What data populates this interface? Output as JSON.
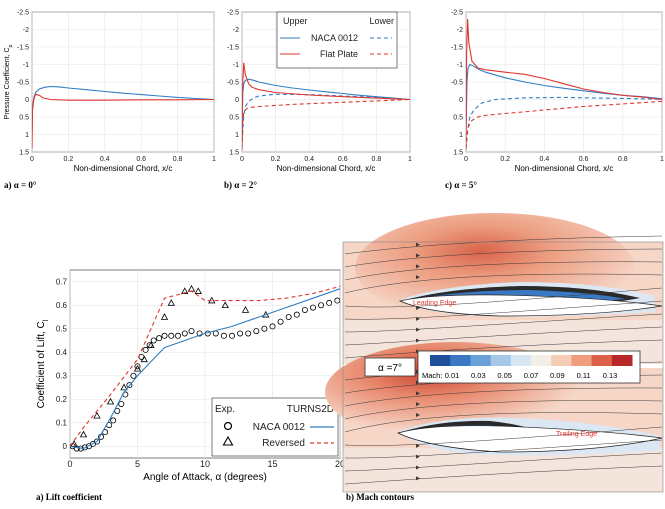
{
  "chart_data": [
    {
      "id": "cp-a0",
      "type": "line",
      "panel_caption": "a) α = 0°",
      "xlabel": "Non-dimensional Chord, x/c",
      "ylabel": "Pressure Coefficient, Cp",
      "xlim": [
        0,
        1
      ],
      "ylim": [
        1.5,
        -2.5
      ],
      "y_inverted": true,
      "xticks": [
        "0",
        "0.2",
        "0.4",
        "0.6",
        "0.8",
        "1"
      ],
      "yticks": [
        "-2.5",
        "-2",
        "-1.5",
        "-1",
        "-0.5",
        "0",
        "0.5",
        "1",
        "1.5"
      ],
      "series": [
        {
          "name": "NACA 0012 Upper",
          "color": "#2f7ec6",
          "dash": false,
          "x": [
            0,
            0.003,
            0.01,
            0.02,
            0.04,
            0.07,
            0.1,
            0.15,
            0.2,
            0.3,
            0.4,
            0.5,
            0.6,
            0.7,
            0.8,
            0.9,
            1.0
          ],
          "y": [
            1.0,
            0.2,
            -0.05,
            -0.2,
            -0.3,
            -0.35,
            -0.37,
            -0.36,
            -0.33,
            -0.28,
            -0.23,
            -0.18,
            -0.14,
            -0.1,
            -0.06,
            -0.03,
            0.0
          ]
        },
        {
          "name": "Flat Plate Upper",
          "color": "#e0362c",
          "dash": false,
          "x": [
            0,
            0.003,
            0.01,
            0.02,
            0.04,
            0.06,
            0.1,
            0.2,
            0.4,
            0.6,
            0.8,
            1.0
          ],
          "y": [
            1.4,
            0.3,
            0.0,
            -0.15,
            -0.12,
            -0.05,
            0.0,
            0.02,
            0.02,
            0.01,
            0.01,
            0.0
          ]
        }
      ]
    },
    {
      "id": "cp-a2",
      "type": "line",
      "panel_caption": "b) α = 2°",
      "xlabel": "Non-dimensional Chord, x/c",
      "xlim": [
        0,
        1
      ],
      "ylim": [
        1.5,
        -2.5
      ],
      "y_inverted": true,
      "xticks": [
        "0",
        "0.2",
        "0.4",
        "0.6",
        "0.8",
        "1"
      ],
      "yticks": [
        "-2.5",
        "-2",
        "-1.5",
        "-1",
        "-0.5",
        "0",
        "0.5",
        "1",
        "1.5"
      ],
      "legend": {
        "header_left": "Upper",
        "header_right": "Lower",
        "entries": [
          "NACA 0012",
          "Flat Plate"
        ]
      },
      "series": [
        {
          "name": "NACA 0012 Upper",
          "color": "#2f7ec6",
          "dash": false,
          "x": [
            0,
            0.005,
            0.01,
            0.02,
            0.04,
            0.07,
            0.1,
            0.2,
            0.3,
            0.4,
            0.5,
            0.6,
            0.7,
            0.8,
            0.9,
            1.0
          ],
          "y": [
            1.0,
            -0.2,
            -0.45,
            -0.55,
            -0.58,
            -0.55,
            -0.5,
            -0.4,
            -0.33,
            -0.27,
            -0.22,
            -0.17,
            -0.12,
            -0.08,
            -0.04,
            0.0
          ]
        },
        {
          "name": "NACA 0012 Lower",
          "color": "#2f7ec6",
          "dash": true,
          "x": [
            0,
            0.005,
            0.01,
            0.02,
            0.04,
            0.07,
            0.1,
            0.2,
            0.4,
            0.6,
            0.8,
            1.0
          ],
          "y": [
            1.4,
            0.9,
            0.5,
            0.2,
            0.05,
            -0.05,
            -0.1,
            -0.15,
            -0.14,
            -0.1,
            -0.06,
            0.0
          ]
        },
        {
          "name": "Flat Plate Upper",
          "color": "#e0362c",
          "dash": false,
          "x": [
            0,
            0.003,
            0.01,
            0.02,
            0.04,
            0.06,
            0.1,
            0.2,
            0.4,
            0.6,
            0.8,
            1.0
          ],
          "y": [
            1.45,
            -0.3,
            -1.05,
            -0.7,
            -0.45,
            -0.35,
            -0.28,
            -0.2,
            -0.13,
            -0.08,
            -0.04,
            0.0
          ]
        },
        {
          "name": "Flat Plate Lower",
          "color": "#e0362c",
          "dash": true,
          "x": [
            0,
            0.005,
            0.01,
            0.03,
            0.06,
            0.1,
            0.3,
            0.6,
            1.0
          ],
          "y": [
            1.3,
            0.6,
            0.35,
            0.25,
            0.22,
            0.2,
            0.14,
            0.08,
            0.0
          ]
        }
      ]
    },
    {
      "id": "cp-a5",
      "type": "line",
      "panel_caption": "c) α = 5°",
      "xlabel": "Non-dimensional Chord, x/c",
      "xlim": [
        0,
        1
      ],
      "ylim": [
        1.5,
        -2.5
      ],
      "y_inverted": true,
      "xticks": [
        "0",
        "0.2",
        "0.4",
        "0.6",
        "0.8",
        "1"
      ],
      "yticks": [
        "-2.5",
        "-2",
        "-1.5",
        "-1",
        "-0.5",
        "0",
        "0.5",
        "1",
        "1.5"
      ],
      "series": [
        {
          "name": "NACA 0012 Upper",
          "color": "#2f7ec6",
          "dash": false,
          "x": [
            0,
            0.005,
            0.01,
            0.02,
            0.04,
            0.07,
            0.1,
            0.2,
            0.3,
            0.4,
            0.5,
            0.6,
            0.7,
            0.8,
            0.9,
            1.0
          ],
          "y": [
            1.0,
            -0.5,
            -0.9,
            -1.0,
            -0.95,
            -0.85,
            -0.78,
            -0.62,
            -0.5,
            -0.4,
            -0.32,
            -0.25,
            -0.18,
            -0.12,
            -0.08,
            -0.02
          ]
        },
        {
          "name": "NACA 0012 Lower",
          "color": "#2f7ec6",
          "dash": true,
          "x": [
            0,
            0.005,
            0.01,
            0.02,
            0.04,
            0.08,
            0.15,
            0.3,
            0.5,
            0.7,
            0.9,
            1.0
          ],
          "y": [
            1.4,
            1.1,
            0.8,
            0.5,
            0.3,
            0.1,
            0.0,
            -0.05,
            -0.06,
            -0.04,
            -0.02,
            0.0
          ]
        },
        {
          "name": "Flat Plate Upper",
          "color": "#e0362c",
          "dash": false,
          "x": [
            0,
            0.003,
            0.008,
            0.015,
            0.03,
            0.06,
            0.1,
            0.2,
            0.3,
            0.4,
            0.5,
            0.6,
            0.7,
            0.8,
            0.9,
            1.0
          ],
          "y": [
            1.45,
            -1.3,
            -2.3,
            -1.6,
            -1.1,
            -0.9,
            -0.85,
            -0.78,
            -0.72,
            -0.6,
            -0.45,
            -0.3,
            -0.2,
            -0.12,
            -0.07,
            0.0
          ]
        },
        {
          "name": "Flat Plate Lower",
          "color": "#e0362c",
          "dash": true,
          "x": [
            0,
            0.005,
            0.01,
            0.03,
            0.06,
            0.1,
            0.3,
            0.6,
            1.0
          ],
          "y": [
            1.4,
            1.0,
            0.8,
            0.6,
            0.5,
            0.45,
            0.35,
            0.2,
            0.05
          ]
        }
      ]
    },
    {
      "id": "lift",
      "type": "line",
      "panel_caption": "a) Lift coefficient",
      "xlabel": "Angle of Attack, α (degrees)",
      "ylabel": "Coefficient of Lift, Cl",
      "xlim": [
        0,
        20
      ],
      "ylim": [
        -0.05,
        0.75
      ],
      "xticks": [
        "0",
        "5",
        "10",
        "15",
        "20"
      ],
      "yticks": [
        "0",
        "0.1",
        "0.2",
        "0.3",
        "0.4",
        "0.5",
        "0.6",
        "0.7"
      ],
      "legend": {
        "header_left": "Exp.",
        "header_right": "TURNS2D",
        "entries": [
          "NACA 0012",
          "Reversed"
        ]
      },
      "series": [
        {
          "name": "Exp. NACA 0012",
          "marker": "circle",
          "color": "#000000",
          "x": [
            0.2,
            0.5,
            0.8,
            1.1,
            1.4,
            1.7,
            2.0,
            2.3,
            2.6,
            2.9,
            3.2,
            3.5,
            3.8,
            4.1,
            4.4,
            4.7,
            5.0,
            5.3,
            5.6,
            5.9,
            6.2,
            6.6,
            7.0,
            7.5,
            8.0,
            8.5,
            9.0,
            9.6,
            10.2,
            10.8,
            11.4,
            12.0,
            12.6,
            13.2,
            13.8,
            14.4,
            15.0,
            15.6,
            16.2,
            16.8,
            17.4,
            18.0,
            18.6,
            19.2,
            19.8
          ],
          "y": [
            0.0,
            -0.01,
            -0.01,
            -0.005,
            0.0,
            0.01,
            0.02,
            0.04,
            0.06,
            0.09,
            0.11,
            0.15,
            0.18,
            0.22,
            0.26,
            0.3,
            0.34,
            0.38,
            0.41,
            0.43,
            0.45,
            0.46,
            0.47,
            0.47,
            0.47,
            0.48,
            0.49,
            0.48,
            0.48,
            0.48,
            0.47,
            0.47,
            0.48,
            0.48,
            0.49,
            0.5,
            0.51,
            0.53,
            0.55,
            0.56,
            0.58,
            0.59,
            0.6,
            0.61,
            0.62
          ]
        },
        {
          "name": "Exp. Reversed",
          "marker": "triangle",
          "color": "#000000",
          "x": [
            0.3,
            1.0,
            2.0,
            3.0,
            4.0,
            5.0,
            5.5,
            6.0,
            7.0,
            7.5,
            8.5,
            9.0,
            9.5,
            10.5,
            11.5,
            13.0,
            14.5
          ],
          "y": [
            0.01,
            0.05,
            0.13,
            0.19,
            0.25,
            0.33,
            0.37,
            0.43,
            0.55,
            0.61,
            0.66,
            0.67,
            0.66,
            0.62,
            0.6,
            0.58,
            0.56
          ]
        },
        {
          "name": "TURNS2D NACA 0012",
          "color": "#2f7ec6",
          "dash": false,
          "x": [
            0,
            1,
            2,
            3,
            4,
            5,
            6,
            7,
            8,
            10,
            12,
            14,
            16,
            18,
            20
          ],
          "y": [
            0.0,
            -0.01,
            0.02,
            0.12,
            0.23,
            0.3,
            0.36,
            0.42,
            0.44,
            0.48,
            0.51,
            0.55,
            0.59,
            0.63,
            0.67
          ]
        },
        {
          "name": "TURNS2D Reversed",
          "color": "#e0362c",
          "dash": true,
          "x": [
            0,
            1,
            3,
            5,
            7,
            9,
            10,
            12,
            14,
            16,
            18,
            20
          ],
          "y": [
            0.0,
            0.08,
            0.22,
            0.37,
            0.63,
            0.66,
            0.62,
            0.62,
            0.62,
            0.63,
            0.65,
            0.68
          ]
        }
      ]
    }
  ],
  "mach_figure": {
    "caption": "b) Mach contours",
    "alpha_label": "α =7°",
    "colorbar_label": "Mach:",
    "colorbar_ticks": [
      "0.01",
      "0.03",
      "0.05",
      "0.07",
      "0.09",
      "0.11",
      "0.13"
    ],
    "colorbar_colors": [
      "#1f4e9a",
      "#3b78c4",
      "#6aa0d8",
      "#a6c8e8",
      "#d8e6f1",
      "#f4eee8",
      "#f5cdb5",
      "#ee9e7d",
      "#db6249",
      "#b8272a"
    ],
    "top_label": "Leading Edge",
    "bottom_label": "Trailing Edge"
  }
}
